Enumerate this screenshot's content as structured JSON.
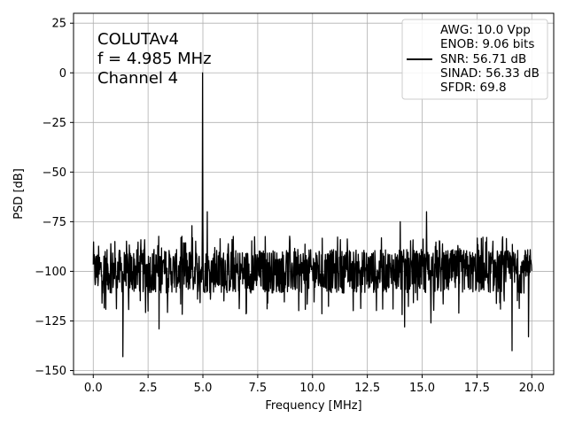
{
  "chart_data": {
    "type": "line",
    "title": "",
    "xlabel": "Frequency [MHz]",
    "ylabel": "PSD [dB]",
    "xlim": [
      -0.9,
      21.0
    ],
    "ylim": [
      -152,
      30
    ],
    "xticks": [
      0.0,
      2.5,
      5.0,
      7.5,
      10.0,
      12.5,
      15.0,
      17.5,
      20.0
    ],
    "xtick_labels": [
      "0.0",
      "2.5",
      "5.0",
      "7.5",
      "10.0",
      "12.5",
      "15.0",
      "17.5",
      "20.0"
    ],
    "yticks": [
      25,
      0,
      -25,
      -50,
      -75,
      -100,
      -125,
      -150
    ],
    "ytick_labels": [
      "25",
      "0",
      "−25",
      "−50",
      "−75",
      "−100",
      "−125",
      "−150"
    ],
    "grid": true,
    "annotations": [
      "COLUTAv4",
      "f = 4.985 MHz",
      "Channel 4"
    ],
    "legend": {
      "placement": "top-right",
      "entries": [
        "AWG: 10.0 Vpp",
        "ENOB: 9.06 bits",
        "SNR: 56.71 dB",
        "SINAD: 56.33 dB",
        "SFDR: 69.8"
      ]
    },
    "series": [
      {
        "color": "#000000",
        "noise_floor_db": -100,
        "signal_peak": {
          "x": 4.985,
          "y": 0
        },
        "notable_points": [
          {
            "x": 1.35,
            "y": -143
          },
          {
            "x": 2.5,
            "y": -120
          },
          {
            "x": 3.0,
            "y": -129
          },
          {
            "x": 4.5,
            "y": -77
          },
          {
            "x": 5.2,
            "y": -70
          },
          {
            "x": 14.0,
            "y": -75
          },
          {
            "x": 14.2,
            "y": -128
          },
          {
            "x": 15.2,
            "y": -70
          },
          {
            "x": 15.4,
            "y": -126
          },
          {
            "x": 19.1,
            "y": -140
          },
          {
            "x": 19.85,
            "y": -133
          }
        ]
      }
    ]
  }
}
